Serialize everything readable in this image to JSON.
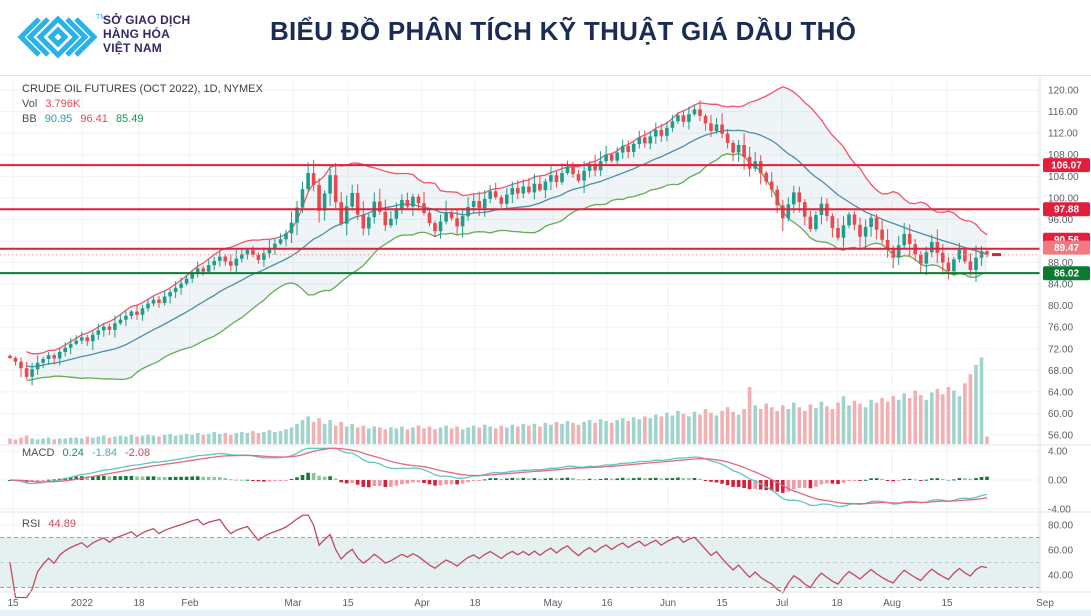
{
  "header": {
    "logo": {
      "org_line1": "SỞ GIAO DỊCH",
      "org_line2": "HÀNG HÓA",
      "org_line3": "VIỆT NAM",
      "trademark": "™"
    },
    "title": "BIỂU ĐỒ PHÂN TÍCH KỸ THUẬT GIÁ DẦU THÔ"
  },
  "legend": {
    "symbol": "CRUDE OIL FUTURES (OCT 2022), 1D, NYMEX",
    "vol_label": "Vol",
    "vol_value": "3.796K",
    "bb_label": "BB",
    "bb_basis": "90.95",
    "bb_upper": "96.41",
    "bb_lower": "85.49",
    "macd_label": "MACD",
    "macd_hist": "0.24",
    "macd_line": "-1.84",
    "macd_signal": "-2.08",
    "rsi_label": "RSI",
    "rsi_value": "44.89"
  },
  "colors": {
    "up": "#1f9d8a",
    "down": "#e8484f",
    "vol_up": "#9fd4cc",
    "vol_down": "#f3b0b3",
    "bb_upper": "#f0556a",
    "bb_mid": "#4e8fa5",
    "bb_lower": "#66aa55",
    "bb_fill": "#7ba6b5",
    "level_red": "#e11f3c",
    "level_green": "#0c7a33",
    "last_salmon": "#f2797d",
    "last_dotted": "#f4a0a4",
    "macd_line": "#5fc7c0",
    "macd_signal": "#e36a80",
    "macd_pos": "#157a38",
    "macd_pos_weak": "#86c79a",
    "macd_neg": "#d2203d",
    "macd_neg_weak": "#f09aa5",
    "rsi_line": "#c24a60",
    "rsi_band": "#dfeeec",
    "band_dash": "#97a1a8",
    "band_mid_dash": "#c3cad0",
    "grid": "#f0f3f6",
    "divider": "#e0e3eb",
    "axis_text": "#5a5f66",
    "bottom_strip": "#e6f1fb",
    "title_navy": "#1a2c55",
    "logo_blue": "#29b2e8",
    "logo_navy": "#2d2a66",
    "red_text": "#ef4455",
    "teal_text": "#45b3ac",
    "green_text": "#0a9950",
    "blue_text": "#2a9db0",
    "rose_text": "#c84a62",
    "gray_text": "#4a4e57"
  },
  "chart_data": {
    "type": "candlestick",
    "title": "CRUDE OIL FUTURES (OCT 2022), 1D, NYMEX",
    "panels": [
      "price+volume",
      "macd",
      "rsi"
    ],
    "price_axis": {
      "min": 56,
      "max": 120,
      "step": 4
    },
    "x_axis": {
      "ticks": [
        {
          "label": "15",
          "pos": 0.012
        },
        {
          "label": "2022",
          "pos": 0.075
        },
        {
          "label": "18",
          "pos": 0.127
        },
        {
          "label": "Feb",
          "pos": 0.174
        },
        {
          "label": "Mar",
          "pos": 0.269
        },
        {
          "label": "15",
          "pos": 0.319
        },
        {
          "label": "Apr",
          "pos": 0.387
        },
        {
          "label": "18",
          "pos": 0.435
        },
        {
          "label": "May",
          "pos": 0.507
        },
        {
          "label": "16",
          "pos": 0.556
        },
        {
          "label": "Jun",
          "pos": 0.612
        },
        {
          "label": "15",
          "pos": 0.662
        },
        {
          "label": "Jul",
          "pos": 0.717
        },
        {
          "label": "18",
          "pos": 0.767
        },
        {
          "label": "Aug",
          "pos": 0.818
        },
        {
          "label": "15",
          "pos": 0.868
        },
        {
          "label": "Sep",
          "pos": 0.958
        }
      ]
    },
    "closes": [
      70.3,
      69.6,
      68.4,
      66.8,
      68.2,
      69.4,
      70.1,
      70.8,
      70.2,
      71.4,
      72.2,
      72.9,
      73.5,
      74.1,
      73.4,
      74.6,
      75.4,
      76.1,
      75.5,
      76.7,
      77.4,
      78.1,
      78.9,
      78.3,
      79.5,
      80.4,
      81.1,
      80.5,
      81.7,
      82.5,
      83.3,
      84.1,
      85.0,
      86.1,
      86.9,
      86.3,
      87.5,
      88.3,
      89.1,
      88.2,
      87.4,
      88.7,
      89.5,
      90.3,
      89.4,
      88.5,
      89.7,
      90.7,
      91.5,
      92.3,
      93.4,
      95.4,
      98.2,
      101.6,
      104.6,
      102.4,
      97.6,
      100.8,
      104.2,
      99.2,
      95.2,
      98.4,
      100.9,
      96.9,
      94.3,
      96.4,
      99.3,
      97.4,
      94.9,
      96.1,
      97.9,
      99.6,
      98.4,
      100.2,
      99.0,
      97.2,
      95.3,
      93.8,
      95.6,
      97.3,
      96.2,
      94.7,
      96.6,
      98.3,
      99.4,
      98.1,
      99.8,
      101.2,
      100.1,
      98.9,
      100.6,
      101.8,
      100.8,
      102.1,
      101.0,
      102.6,
      101.4,
      103.0,
      104.2,
      102.9,
      104.6,
      105.8,
      104.4,
      103.2,
      105.0,
      106.3,
      105.1,
      106.8,
      108.0,
      106.9,
      108.4,
      109.6,
      108.5,
      110.0,
      111.2,
      110.1,
      111.4,
      112.6,
      111.5,
      113.0,
      114.2,
      115.3,
      114.1,
      115.5,
      116.4,
      115.2,
      113.8,
      112.4,
      113.6,
      111.9,
      110.2,
      108.4,
      109.8,
      107.6,
      105.4,
      106.8,
      104.6,
      103.0,
      101.5,
      98.6,
      96.2,
      98.8,
      101.0,
      99.2,
      96.5,
      94.2,
      96.8,
      98.9,
      96.6,
      94.4,
      92.6,
      94.9,
      96.9,
      95.0,
      92.8,
      94.6,
      96.3,
      94.1,
      92.2,
      90.4,
      88.9,
      91.2,
      93.3,
      91.4,
      89.5,
      87.8,
      89.9,
      91.8,
      89.8,
      88.0,
      86.4,
      88.6,
      90.3,
      88.2,
      86.6,
      88.9,
      90.1,
      89.47
    ],
    "volumes_rel": [
      6,
      5,
      7,
      9,
      6,
      5,
      6,
      7,
      5,
      6,
      6,
      7,
      7,
      6,
      8,
      7,
      8,
      9,
      7,
      8,
      9,
      8,
      10,
      8,
      9,
      10,
      9,
      8,
      10,
      11,
      9,
      10,
      11,
      10,
      12,
      10,
      11,
      13,
      11,
      12,
      10,
      12,
      13,
      12,
      14,
      12,
      13,
      15,
      13,
      14,
      16,
      18,
      22,
      26,
      30,
      24,
      28,
      22,
      26,
      20,
      24,
      19,
      22,
      18,
      20,
      17,
      19,
      18,
      16,
      18,
      17,
      19,
      16,
      18,
      20,
      17,
      19,
      16,
      18,
      20,
      17,
      19,
      16,
      18,
      20,
      18,
      21,
      19,
      17,
      20,
      18,
      21,
      19,
      22,
      20,
      22,
      19,
      23,
      21,
      24,
      22,
      25,
      23,
      21,
      24,
      26,
      23,
      27,
      25,
      23,
      26,
      28,
      25,
      29,
      27,
      30,
      28,
      32,
      30,
      34,
      31,
      36,
      33,
      30,
      35,
      32,
      38,
      34,
      31,
      36,
      40,
      35,
      32,
      38,
      62,
      42,
      38,
      44,
      40,
      36,
      42,
      38,
      45,
      40,
      36,
      43,
      39,
      46,
      41,
      38,
      45,
      52,
      42,
      47,
      44,
      40,
      48,
      45,
      50,
      46,
      52,
      48,
      55,
      50,
      58,
      53,
      48,
      56,
      60,
      54,
      62,
      58,
      52,
      66,
      76,
      86,
      94,
      8
    ],
    "last_volume_label": "3.796K",
    "levels": [
      {
        "value": 106.07,
        "label": "106.07",
        "style": "solid",
        "color_key": "level_red",
        "badge_key": "level_red"
      },
      {
        "value": 97.88,
        "label": "97.88",
        "style": "solid",
        "color_key": "level_red",
        "badge_key": "level_red"
      },
      {
        "value": 90.56,
        "label": "90.56",
        "style": "solid",
        "color_key": "level_red",
        "badge_key": "level_red"
      },
      {
        "value": 89.47,
        "label": "89.47",
        "style": "dotted",
        "color_key": "last_dotted",
        "badge_key": "last_salmon"
      },
      {
        "value": 86.02,
        "label": "86.02",
        "style": "solid",
        "color_key": "level_green",
        "badge_key": "level_green"
      }
    ],
    "last_price": 89.47,
    "indicators": {
      "bollinger": {
        "period": 20,
        "mult": 2,
        "basis": 90.95,
        "upper": 96.41,
        "lower": 85.49
      },
      "macd": {
        "fast": 12,
        "slow": 26,
        "signal_period": 9,
        "hist": 0.24,
        "macd": -1.84,
        "signal": -2.08,
        "axis_ticks": [
          4,
          0,
          -4
        ]
      },
      "rsi": {
        "period": 14,
        "value": 44.89,
        "axis_ticks": [
          80,
          60,
          40
        ],
        "band": [
          30,
          70
        ]
      }
    }
  }
}
